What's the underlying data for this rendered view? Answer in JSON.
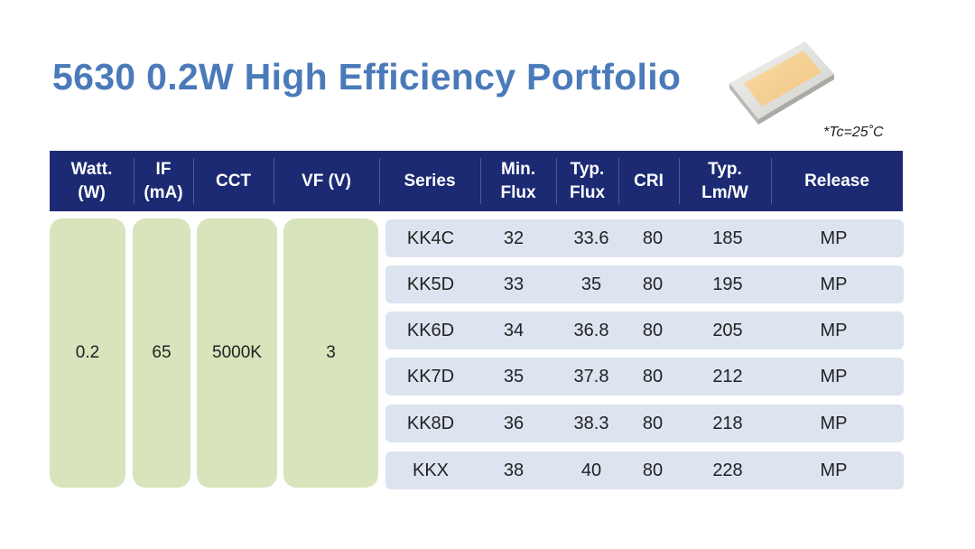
{
  "title": "5630 0.2W High Efficiency Portfolio",
  "note": "*Tc=25˚C",
  "header": {
    "watt": "Watt.\n(W)",
    "if": "IF\n(mA)",
    "cct": "CCT",
    "vf": "VF (V)",
    "series": "Series",
    "min_flux": "Min.\nFlux",
    "typ_flux": "Typ.\nFlux",
    "cri": "CRI",
    "typ_lmw": "Typ.\nLm/W",
    "release": "Release"
  },
  "common": {
    "watt": "0.2",
    "if": "65",
    "cct": "5000K",
    "vf": "3"
  },
  "rows": [
    {
      "series": "KK4C",
      "min_flux": "32",
      "typ_flux": "33.6",
      "cri": "80",
      "typ_lmw": "185",
      "release": "MP"
    },
    {
      "series": "KK5D",
      "min_flux": "33",
      "typ_flux": "35",
      "cri": "80",
      "typ_lmw": "195",
      "release": "MP"
    },
    {
      "series": "KK6D",
      "min_flux": "34",
      "typ_flux": "36.8",
      "cri": "80",
      "typ_lmw": "205",
      "release": "MP"
    },
    {
      "series": "KK7D",
      "min_flux": "35",
      "typ_flux": "37.8",
      "cri": "80",
      "typ_lmw": "212",
      "release": "MP"
    },
    {
      "series": "KK8D",
      "min_flux": "36",
      "typ_flux": "38.3",
      "cri": "80",
      "typ_lmw": "218",
      "release": "MP"
    },
    {
      "series": "KKX",
      "min_flux": "38",
      "typ_flux": "40",
      "cri": "80",
      "typ_lmw": "228",
      "release": "MP"
    }
  ]
}
